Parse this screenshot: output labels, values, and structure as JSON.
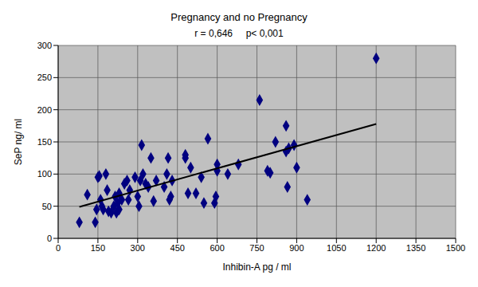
{
  "chart_data": {
    "type": "scatter",
    "title": "Pregnancy and no Pregnancy",
    "subtitle": "r = 0,646     p< 0,001",
    "x_label": "Inhibin-A pg / ml",
    "y_label": "SeP ng/ ml",
    "x": [
      80,
      110,
      140,
      145,
      150,
      155,
      160,
      165,
      170,
      180,
      185,
      190,
      200,
      210,
      215,
      220,
      225,
      230,
      230,
      240,
      250,
      260,
      265,
      270,
      290,
      300,
      305,
      310,
      315,
      320,
      330,
      340,
      350,
      360,
      370,
      400,
      410,
      415,
      420,
      425,
      430,
      480,
      480,
      490,
      500,
      520,
      540,
      550,
      565,
      590,
      595,
      600,
      600,
      640,
      680,
      760,
      790,
      800,
      820,
      860,
      860,
      865,
      870,
      890,
      900,
      940,
      1200
    ],
    "values": [
      25,
      68,
      25,
      45,
      95,
      97,
      60,
      50,
      45,
      100,
      75,
      42,
      40,
      50,
      65,
      40,
      55,
      70,
      45,
      60,
      85,
      90,
      60,
      75,
      95,
      65,
      50,
      90,
      145,
      100,
      85,
      80,
      125,
      58,
      90,
      80,
      100,
      125,
      60,
      65,
      90,
      125,
      130,
      70,
      110,
      70,
      95,
      55,
      155,
      55,
      65,
      115,
      105,
      100,
      115,
      215,
      105,
      102,
      150,
      175,
      135,
      80,
      140,
      145,
      110,
      60,
      280
    ],
    "color": "#000080",
    "marker": "diamond",
    "trend_line": {
      "x": [
        80,
        1200
      ],
      "values": [
        49,
        178
      ],
      "color": "#000000",
      "line_style": "solid"
    },
    "xlim": [
      0,
      1500
    ],
    "xticks": [
      0,
      150,
      300,
      450,
      600,
      750,
      900,
      1050,
      1200,
      1350,
      1500
    ],
    "ylim": [
      0,
      300
    ],
    "yticks": [
      0,
      50,
      100,
      150,
      200,
      250,
      300
    ],
    "grid": true
  }
}
